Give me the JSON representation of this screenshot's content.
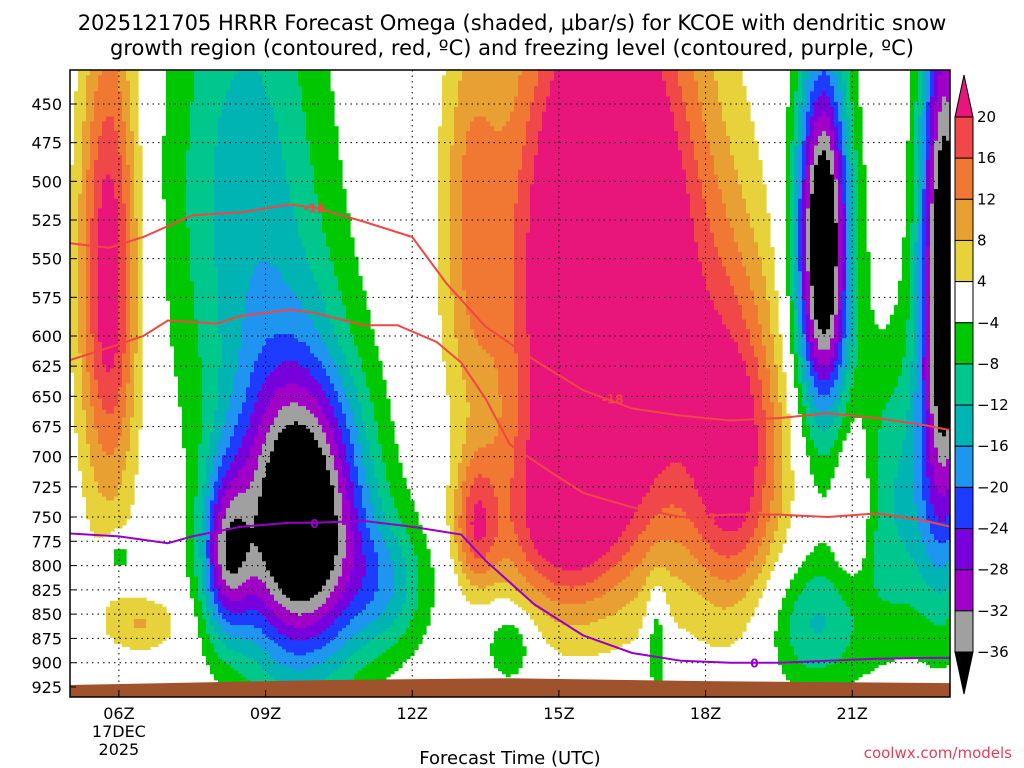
{
  "title": {
    "line1": "2025121705 HRRR Forecast Omega (shaded, μbar/s) for KCOE with dendritic snow",
    "line2": "growth region (contoured, red, ºC) and freezing level (contoured, purple, ºC)"
  },
  "credit": "coolwx.com/models",
  "chart_data": {
    "type": "heatmap",
    "title": "2025121705 HRRR Forecast Omega (shaded, μbar/s) for KCOE with dendritic snow growth region (contoured, red, ºC) and freezing level (contoured, purple, ºC)",
    "xlabel": "Forecast Time (UTC)",
    "ylabel": "",
    "x_range_hours_utc": [
      5,
      23
    ],
    "y_range_hpa": [
      430,
      930
    ],
    "y_scale": "pressure (inverted)",
    "grid": true,
    "x_ticks": [
      {
        "hour": 6,
        "label": "06Z",
        "sub1": "17DEC",
        "sub2": "2025"
      },
      {
        "hour": 9,
        "label": "09Z"
      },
      {
        "hour": 12,
        "label": "12Z"
      },
      {
        "hour": 15,
        "label": "15Z"
      },
      {
        "hour": 18,
        "label": "18Z"
      },
      {
        "hour": 21,
        "label": "21Z"
      }
    ],
    "y_ticks": [
      450,
      475,
      500,
      525,
      550,
      575,
      600,
      625,
      650,
      675,
      700,
      725,
      750,
      775,
      800,
      825,
      850,
      875,
      900,
      925
    ],
    "colorbar": {
      "unit": "μbar/s",
      "tick_labels": [
        "20",
        "16",
        "12",
        "8",
        "4",
        "−4",
        "−8",
        "−12",
        "−16",
        "−20",
        "−24",
        "−28",
        "−32",
        "−36"
      ],
      "bins": [
        {
          "range": "> 20",
          "color": "#e8157a"
        },
        {
          "range": "16 to 20",
          "color": "#f04848"
        },
        {
          "range": "12 to 16",
          "color": "#f07832"
        },
        {
          "range": "8 to 12",
          "color": "#e8a032"
        },
        {
          "range": "4 to 8",
          "color": "#e8d23c"
        },
        {
          "range": "-4 to 4",
          "color": "#ffffff"
        },
        {
          "range": "-8 to -4",
          "color": "#00c800"
        },
        {
          "range": "-12 to -8",
          "color": "#00c88c"
        },
        {
          "range": "-16 to -12",
          "color": "#00b4b4"
        },
        {
          "range": "-20 to -16",
          "color": "#1e96f0"
        },
        {
          "range": "-24 to -20",
          "color": "#1e3cff"
        },
        {
          "range": "-28 to -24",
          "color": "#7800dc"
        },
        {
          "range": "-32 to -28",
          "color": "#a000c8"
        },
        {
          "range": "-36 to -32",
          "color": "#a0a0a0"
        },
        {
          "range": "< -36",
          "color": "#000000"
        }
      ]
    },
    "contours": [
      {
        "name": "-18",
        "color": "#f04646",
        "label": "-18",
        "points": [
          [
            5.0,
            540
          ],
          [
            5.8,
            543
          ],
          [
            6.5,
            536
          ],
          [
            7.5,
            522
          ],
          [
            8.5,
            520
          ],
          [
            9.5,
            515
          ],
          [
            10.0,
            517
          ],
          [
            11.0,
            526
          ],
          [
            12.0,
            536
          ],
          [
            12.7,
            566
          ],
          [
            13.5,
            594
          ],
          [
            14.5,
            620
          ],
          [
            15.5,
            645
          ],
          [
            16.5,
            660
          ],
          [
            17.5,
            666
          ],
          [
            18.5,
            670
          ],
          [
            19.5,
            668
          ],
          [
            20.5,
            664
          ],
          [
            21.5,
            668
          ],
          [
            22.5,
            674
          ],
          [
            23.0,
            678
          ]
        ]
      },
      {
        "name": "-12",
        "color": "#f04646",
        "label": "-12",
        "points": [
          [
            5.0,
            620
          ],
          [
            6.0,
            607
          ],
          [
            6.5,
            600
          ],
          [
            7.0,
            590
          ],
          [
            8.0,
            592
          ],
          [
            8.5,
            587
          ],
          [
            9.5,
            583
          ],
          [
            10.0,
            585
          ],
          [
            11.0,
            593
          ],
          [
            11.7,
            593
          ],
          [
            12.5,
            605
          ],
          [
            13.0,
            622
          ],
          [
            13.5,
            652
          ],
          [
            14.0,
            690
          ],
          [
            14.8,
            712
          ],
          [
            15.5,
            730
          ],
          [
            16.5,
            742
          ],
          [
            17.5,
            750
          ],
          [
            18.5,
            748
          ],
          [
            19.5,
            748
          ],
          [
            20.5,
            750
          ],
          [
            21.5,
            747
          ],
          [
            22.5,
            754
          ],
          [
            23.0,
            760
          ]
        ]
      },
      {
        "name": "0",
        "color": "#9600c8",
        "label": "0",
        "points": [
          [
            5.0,
            767
          ],
          [
            6.0,
            770
          ],
          [
            7.0,
            777
          ],
          [
            7.5,
            770
          ],
          [
            8.5,
            760
          ],
          [
            9.5,
            756
          ],
          [
            10.0,
            756
          ],
          [
            11.0,
            754
          ],
          [
            12.0,
            760
          ],
          [
            13.0,
            768
          ],
          [
            13.5,
            795
          ],
          [
            14.5,
            840
          ],
          [
            15.5,
            872
          ],
          [
            16.5,
            890
          ],
          [
            17.5,
            898
          ],
          [
            18.5,
            900
          ],
          [
            19.5,
            900
          ],
          [
            20.5,
            898
          ],
          [
            21.5,
            896
          ],
          [
            22.5,
            895
          ],
          [
            23.0,
            895
          ]
        ]
      }
    ],
    "contour_label_positions": [
      {
        "text": "-18",
        "hour": 10.0,
        "hpa": 517
      },
      {
        "text": "-18",
        "hour": 16.1,
        "hpa": 652
      },
      {
        "text": "-12",
        "hour": 18.0,
        "hpa": 750
      },
      {
        "text": "0",
        "hour": 10.0,
        "hpa": 756
      },
      {
        "text": "0",
        "hour": 19.0,
        "hpa": 900
      }
    ],
    "shaded_features": [
      {
        "desc": "strong upward omega core (>20)",
        "hour_range": [
          12.8,
          19.5
        ],
        "hpa_range": [
          430,
          850
        ],
        "value": 24
      },
      {
        "desc": "strong downward omega core (< -36)",
        "hour_range": [
          8.0,
          11.5
        ],
        "hpa_range": [
          640,
          890
        ],
        "value": -40
      },
      {
        "desc": "upper downward core (< -36)",
        "hour_range": [
          19.9,
          20.9
        ],
        "hpa_range": [
          450,
          630
        ],
        "value": -40
      },
      {
        "desc": "positive column early",
        "hour_range": [
          5.2,
          6.8
        ],
        "hpa_range": [
          430,
          700
        ],
        "value": 14
      }
    ],
    "terrain_color": "#a0522d"
  }
}
